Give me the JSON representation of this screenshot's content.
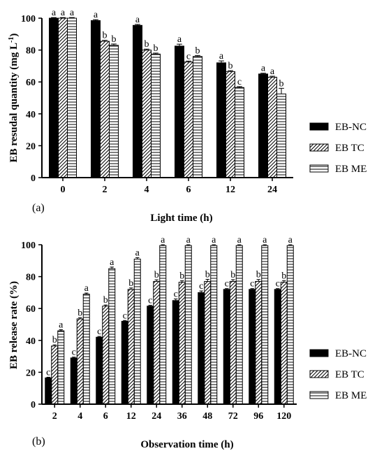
{
  "chart_data": [
    {
      "type": "bar",
      "panel_label": "(a)",
      "xlabel": "Light time (h)",
      "ylabel": "EB resudal quantity (mg L",
      "ylabel_sup": "-1",
      "ylabel_tail": ")",
      "ylim": [
        0,
        100
      ],
      "yticks": [
        "0",
        "20",
        "40",
        "60",
        "80",
        "100"
      ],
      "categories": [
        "0",
        "2",
        "4",
        "6",
        "12",
        "24"
      ],
      "series": [
        {
          "name": "EB-NC",
          "values": [
            100,
            98.5,
            95.5,
            82.5,
            72,
            65
          ],
          "errors": [
            0.4,
            0.6,
            0.6,
            1.2,
            1.2,
            0.5
          ],
          "letters": [
            "a",
            "a",
            "a",
            "a",
            "a",
            "a"
          ]
        },
        {
          "name": "EB TC",
          "values": [
            100,
            85.5,
            80,
            72.5,
            66.5,
            63
          ],
          "errors": [
            0.4,
            0.6,
            0.6,
            0.6,
            0.6,
            0.6
          ],
          "letters": [
            "a",
            "b",
            "b",
            "c",
            "b",
            "a"
          ]
        },
        {
          "name": "EB ME",
          "values": [
            100,
            83,
            77.5,
            76,
            56.5,
            52.5
          ],
          "errors": [
            0.4,
            0.8,
            0.6,
            0.6,
            0.6,
            3.5
          ],
          "letters": [
            "a",
            "b",
            "b",
            "b",
            "c",
            "b"
          ]
        }
      ],
      "legend_position": "right"
    },
    {
      "type": "bar",
      "panel_label": "(b)",
      "xlabel": "Observation time (h)",
      "ylabel": "EB release rate (%)",
      "ylim": [
        0,
        100
      ],
      "yticks": [
        "0",
        "20",
        "40",
        "60",
        "80",
        "100"
      ],
      "categories": [
        "2",
        "4",
        "6",
        "12",
        "24",
        "36",
        "48",
        "72",
        "96",
        "120"
      ],
      "series": [
        {
          "name": "EB-NC",
          "values": [
            16.5,
            29,
            42,
            52,
            61.5,
            65,
            70,
            72,
            72,
            72
          ],
          "errors": [
            0.4,
            0.5,
            0.5,
            0.5,
            0.5,
            1.0,
            1.0,
            0.5,
            0.5,
            0.5
          ],
          "letters": [
            "c",
            "c",
            "c",
            "c",
            "c",
            "c",
            "c",
            "c",
            "c",
            "c"
          ]
        },
        {
          "name": "EB TC",
          "values": [
            36.5,
            53.5,
            61.5,
            72,
            77,
            76.5,
            77,
            77,
            77,
            76.5
          ],
          "errors": [
            0.7,
            0.7,
            0.7,
            0.9,
            1.0,
            0.9,
            1.3,
            1.1,
            1.2,
            1.0
          ],
          "letters": [
            "b",
            "b",
            "b",
            "b",
            "b",
            "b",
            "b",
            "b",
            "b",
            "b"
          ]
        },
        {
          "name": "EB ME",
          "values": [
            46,
            69,
            85,
            91,
            99.5,
            99.5,
            99.5,
            99.5,
            99.5,
            99.5
          ],
          "errors": [
            0.7,
            0.7,
            1.0,
            0.9,
            0.5,
            0.5,
            0.5,
            0.5,
            0.5,
            0.5
          ],
          "letters": [
            "a",
            "a",
            "a",
            "a",
            "a",
            "a",
            "a",
            "a",
            "a",
            "a"
          ]
        }
      ],
      "legend_position": "right"
    }
  ]
}
